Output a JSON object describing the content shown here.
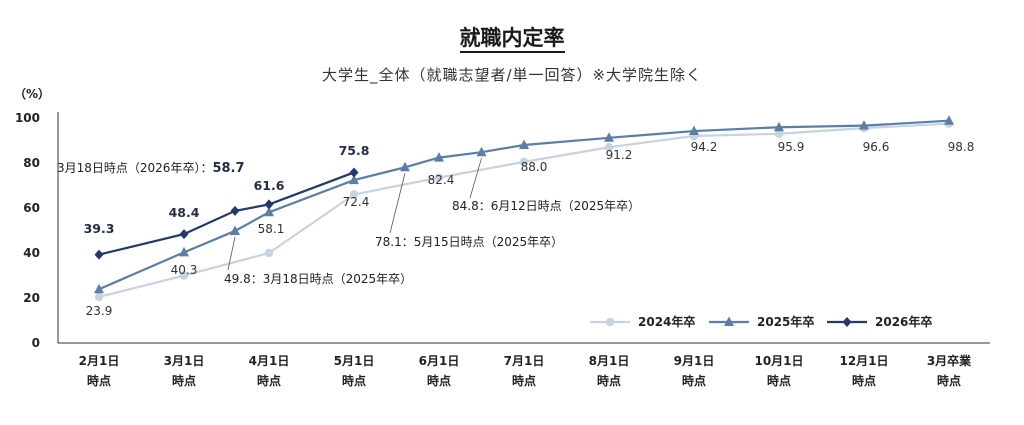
{
  "chart_data": {
    "type": "line",
    "title": "就職内定率",
    "subtitle": "大学生_全体（就職志望者/単一回答）※大学院生除く",
    "ylabel": "（%）",
    "ylim": [
      0,
      100
    ],
    "yticks": [
      0,
      20,
      40,
      60,
      80,
      100
    ],
    "categories": [
      [
        "2月1日",
        "時点"
      ],
      [
        "3月1日",
        "時点"
      ],
      [
        "4月1日",
        "時点"
      ],
      [
        "5月1日",
        "時点"
      ],
      [
        "6月1日",
        "時点"
      ],
      [
        "7月1日",
        "時点"
      ],
      [
        "8月1日",
        "時点"
      ],
      [
        "9月1日",
        "時点"
      ],
      [
        "10月1日",
        "時点"
      ],
      [
        "12月1日",
        "時点"
      ],
      [
        "3月卒業",
        "時点"
      ]
    ],
    "series": [
      {
        "name": "2024年卒",
        "color": "#c8d3e1",
        "marker": "circle",
        "x": [
          0,
          1,
          2,
          3,
          4,
          5,
          6,
          7,
          8,
          9,
          10
        ],
        "values": [
          20.5,
          30.0,
          40.0,
          66.0,
          73.5,
          80.5,
          87.0,
          92.0,
          93.0,
          95.5,
          97.5
        ]
      },
      {
        "name": "2025年卒",
        "color": "#5b7ea8",
        "marker": "triangle",
        "x": [
          0,
          1,
          1.6,
          2,
          3,
          3.6,
          4,
          4.5,
          5,
          6,
          7,
          8,
          9,
          10
        ],
        "values": [
          23.9,
          40.3,
          49.8,
          58.1,
          72.4,
          78.1,
          82.4,
          84.8,
          88.0,
          91.2,
          94.2,
          95.9,
          96.6,
          98.8
        ]
      },
      {
        "name": "2026年卒",
        "color": "#1f3a6b",
        "marker": "diamond",
        "x": [
          0,
          1,
          1.6,
          2,
          3
        ],
        "values": [
          39.3,
          48.4,
          58.7,
          61.6,
          75.8
        ]
      }
    ],
    "labels_2025": [
      "23.9",
      "40.3",
      "58.1",
      "72.4",
      "82.4",
      "88.0",
      "91.2",
      "94.2",
      "95.9",
      "96.6",
      "98.8"
    ],
    "labels_2026": [
      "39.3",
      "48.4",
      "61.6",
      "75.8"
    ],
    "annotations": [
      {
        "prefix": "3月18日時点（2026年卒）：",
        "value": "58.7"
      },
      {
        "value": "49.8",
        "text": "：3月18日時点（2025年卒）"
      },
      {
        "value": "78.1",
        "text": "：5月15日時点（2025年卒）"
      },
      {
        "value": "84.8",
        "text": "：6月12日時点（2025年卒）"
      }
    ],
    "legend": [
      "2024年卒",
      "2025年卒",
      "2026年卒"
    ]
  }
}
